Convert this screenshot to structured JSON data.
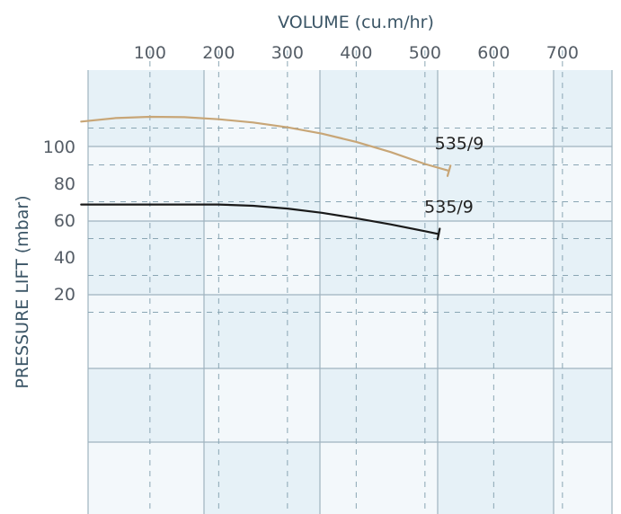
{
  "chart_data": {
    "type": "line",
    "title": "",
    "xlabel": "VOLUME (cu.m/hr)",
    "ylabel": "PRESSURE LIFT (mbar)",
    "x_ticks": [
      100,
      200,
      300,
      400,
      500,
      600,
      700
    ],
    "y_ticks": [
      20,
      40,
      60,
      80,
      100
    ],
    "xlim": [
      0,
      750
    ],
    "ylim": [
      0,
      120
    ],
    "grid": true,
    "colors": {
      "upper": "#c8a677",
      "lower": "#1a1a1a",
      "grid_solid": "#9fb3bf",
      "grid_dashed": "#8aa6b4",
      "band_dark": "#e6f1f7",
      "band_light": "#f3f8fb",
      "axis_text": "#3b5566"
    },
    "series": [
      {
        "label": "535/9",
        "x": [
          0,
          50,
          100,
          150,
          200,
          250,
          300,
          350,
          400,
          450,
          500,
          535
        ],
        "y": [
          113.5,
          115.4,
          116.1,
          115.9,
          114.8,
          113.0,
          110.4,
          107.0,
          102.5,
          97.0,
          90.5,
          86.8
        ]
      },
      {
        "label": "535/9",
        "x": [
          0,
          50,
          100,
          150,
          200,
          250,
          300,
          350,
          400,
          450,
          500,
          520
        ],
        "y": [
          68.5,
          68.5,
          68.5,
          68.5,
          68.5,
          67.8,
          66.3,
          64.0,
          61.0,
          57.7,
          54.0,
          52.5
        ]
      }
    ]
  }
}
